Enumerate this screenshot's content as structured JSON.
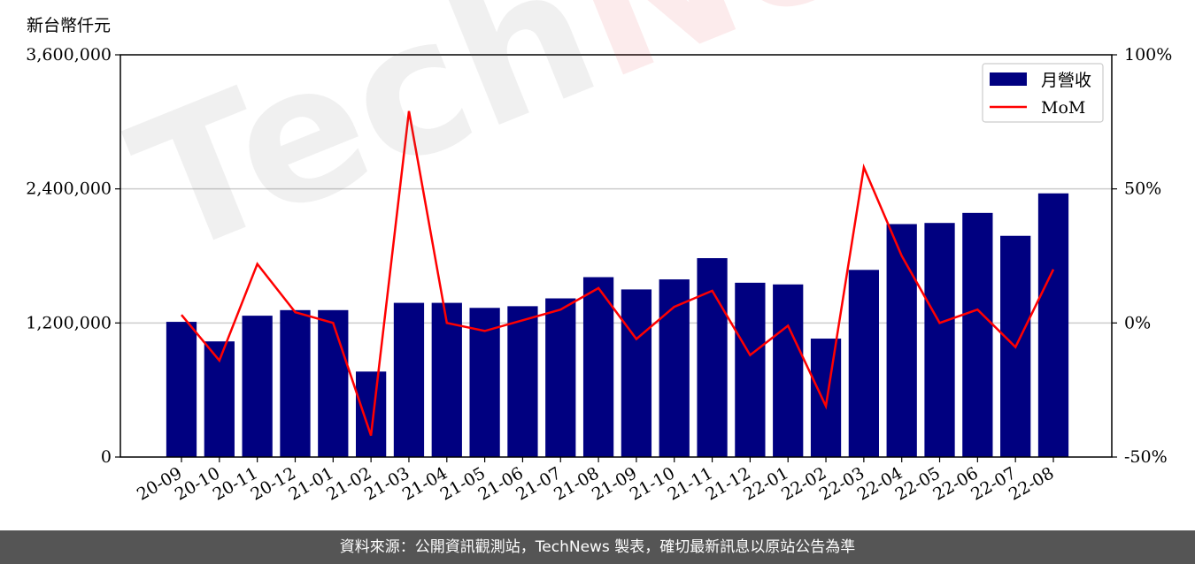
{
  "ylabel_left": "新台幣仟元",
  "footer": "資料來源：公開資訊觀測站，TechNews 製表，確切最新訊息以原站公告為準",
  "watermark": {
    "part1": "Tech",
    "part2": "News"
  },
  "colors": {
    "bar": "#000080",
    "line": "#ff0000",
    "grid": "#cccccc",
    "footer_bg": "#555555"
  },
  "chart_data": {
    "type": "bar",
    "categories": [
      "20-09",
      "20-10",
      "20-11",
      "20-12",
      "21-01",
      "21-02",
      "21-03",
      "21-04",
      "21-05",
      "21-06",
      "21-07",
      "21-08",
      "21-09",
      "21-10",
      "21-11",
      "21-12",
      "22-01",
      "22-02",
      "22-03",
      "22-04",
      "22-05",
      "22-06",
      "22-07",
      "22-08"
    ],
    "series": [
      {
        "name": "月營收",
        "kind": "bar",
        "axis": "left",
        "values": [
          1210000,
          1035000,
          1265000,
          1315000,
          1315000,
          765000,
          1380000,
          1380000,
          1335000,
          1350000,
          1420000,
          1610000,
          1500000,
          1590000,
          1780000,
          1560000,
          1545000,
          1060000,
          1675000,
          2085000,
          2095000,
          2185000,
          1980000,
          2360000
        ]
      },
      {
        "name": "MoM",
        "kind": "line",
        "axis": "right",
        "values": [
          3,
          -14,
          22,
          4,
          0,
          -42,
          79,
          0,
          -3,
          1,
          5,
          13,
          -6,
          6,
          12,
          -12,
          -1,
          -31,
          58,
          25,
          0,
          5,
          -9,
          20
        ]
      }
    ],
    "yaxis_left": {
      "ylim": [
        0,
        3600000
      ],
      "ticks": [
        0,
        1200000,
        2400000,
        3600000
      ],
      "tick_labels": [
        "0",
        "1,200,000",
        "2,400,000",
        "3,600,000"
      ]
    },
    "yaxis_right": {
      "ylim": [
        -50,
        100
      ],
      "ticks": [
        -50,
        0,
        50,
        100
      ],
      "tick_labels": [
        "-50%",
        "0%",
        "50%",
        "100%"
      ]
    },
    "grid": "horizontal",
    "legend_position": "top-right"
  }
}
